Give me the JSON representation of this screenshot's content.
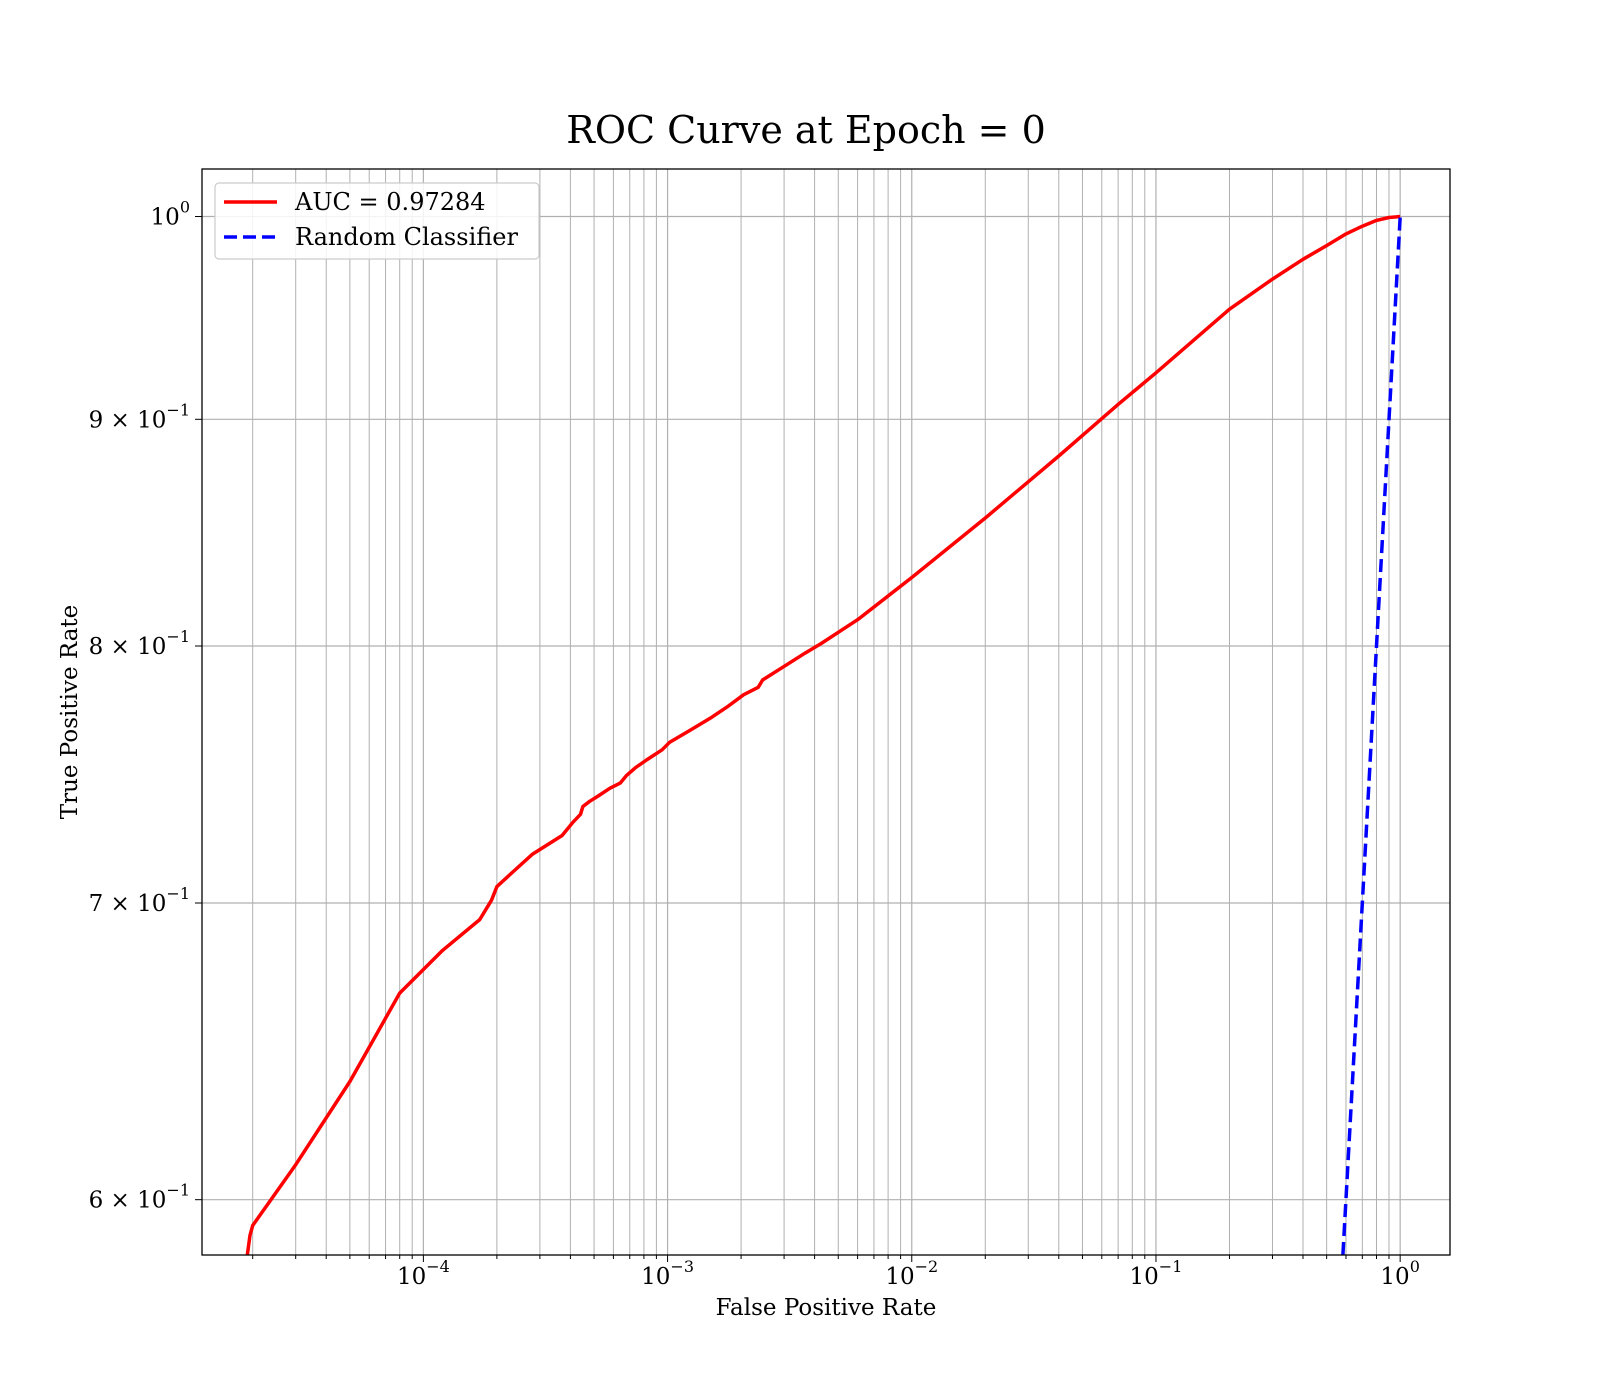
{
  "chart_data": {
    "type": "line",
    "title": "ROC Curve at Epoch = 0",
    "xlabel": "False Positive Rate",
    "ylabel": "True Positive Rate",
    "xscale": "log",
    "yscale": "log",
    "xlim": [
      1.24e-05,
      1.6
    ],
    "ylim": [
      0.583,
      1.025
    ],
    "grid": true,
    "legend_position": "top-left",
    "x_ticks": [
      {
        "base": "10",
        "exp": "−4",
        "value": 0.0001
      },
      {
        "base": "10",
        "exp": "−3",
        "value": 0.001
      },
      {
        "base": "10",
        "exp": "−2",
        "value": 0.01
      },
      {
        "base": "10",
        "exp": "−1",
        "value": 0.1
      },
      {
        "base": "10",
        "exp": "0",
        "value": 1
      }
    ],
    "y_ticks": [
      {
        "mant": "",
        "base": "10",
        "exp": "0",
        "value": 1.0
      },
      {
        "mant": "9 × ",
        "base": "10",
        "exp": "−1",
        "value": 0.9
      },
      {
        "mant": "8 × ",
        "base": "10",
        "exp": "−1",
        "value": 0.8
      },
      {
        "mant": "7 × ",
        "base": "10",
        "exp": "−1",
        "value": 0.7
      },
      {
        "mant": "6 × ",
        "base": "10",
        "exp": "−1",
        "value": 0.6
      }
    ],
    "series": [
      {
        "name": "AUC = 0.97284",
        "color": "#ff0000",
        "dash": "solid",
        "x": [
          1.9e-05,
          1.95e-05,
          2e-05,
          3e-05,
          5e-05,
          8e-05,
          0.00012,
          0.00017,
          0.00019,
          0.0002,
          0.00023,
          0.00028,
          0.00037,
          0.00041,
          0.00044,
          0.00045,
          0.00048,
          0.00052,
          0.00058,
          0.00064,
          0.00068,
          0.00074,
          0.00082,
          0.00095,
          0.00102,
          0.00125,
          0.00152,
          0.00175,
          0.00205,
          0.00235,
          0.00245,
          0.00305,
          0.00365,
          0.00425,
          0.006,
          0.01,
          0.02,
          0.04,
          0.07,
          0.1,
          0.15,
          0.2,
          0.3,
          0.4,
          0.5,
          0.6,
          0.7,
          0.8,
          0.9,
          1.0
        ],
        "y": [
          0.583,
          0.589,
          0.592,
          0.611,
          0.638,
          0.668,
          0.683,
          0.694,
          0.701,
          0.706,
          0.711,
          0.718,
          0.725,
          0.73,
          0.733,
          0.736,
          0.738,
          0.74,
          0.743,
          0.745,
          0.748,
          0.751,
          0.754,
          0.758,
          0.761,
          0.766,
          0.771,
          0.775,
          0.78,
          0.783,
          0.786,
          0.792,
          0.797,
          0.801,
          0.811,
          0.829,
          0.855,
          0.883,
          0.907,
          0.922,
          0.94,
          0.953,
          0.968,
          0.978,
          0.985,
          0.991,
          0.995,
          0.998,
          0.9995,
          1.0
        ]
      },
      {
        "name": "Random Classifier",
        "color": "#0000ff",
        "dash": "dashed",
        "x": [
          0.583,
          1.0
        ],
        "y": [
          0.583,
          1.0
        ]
      }
    ]
  }
}
